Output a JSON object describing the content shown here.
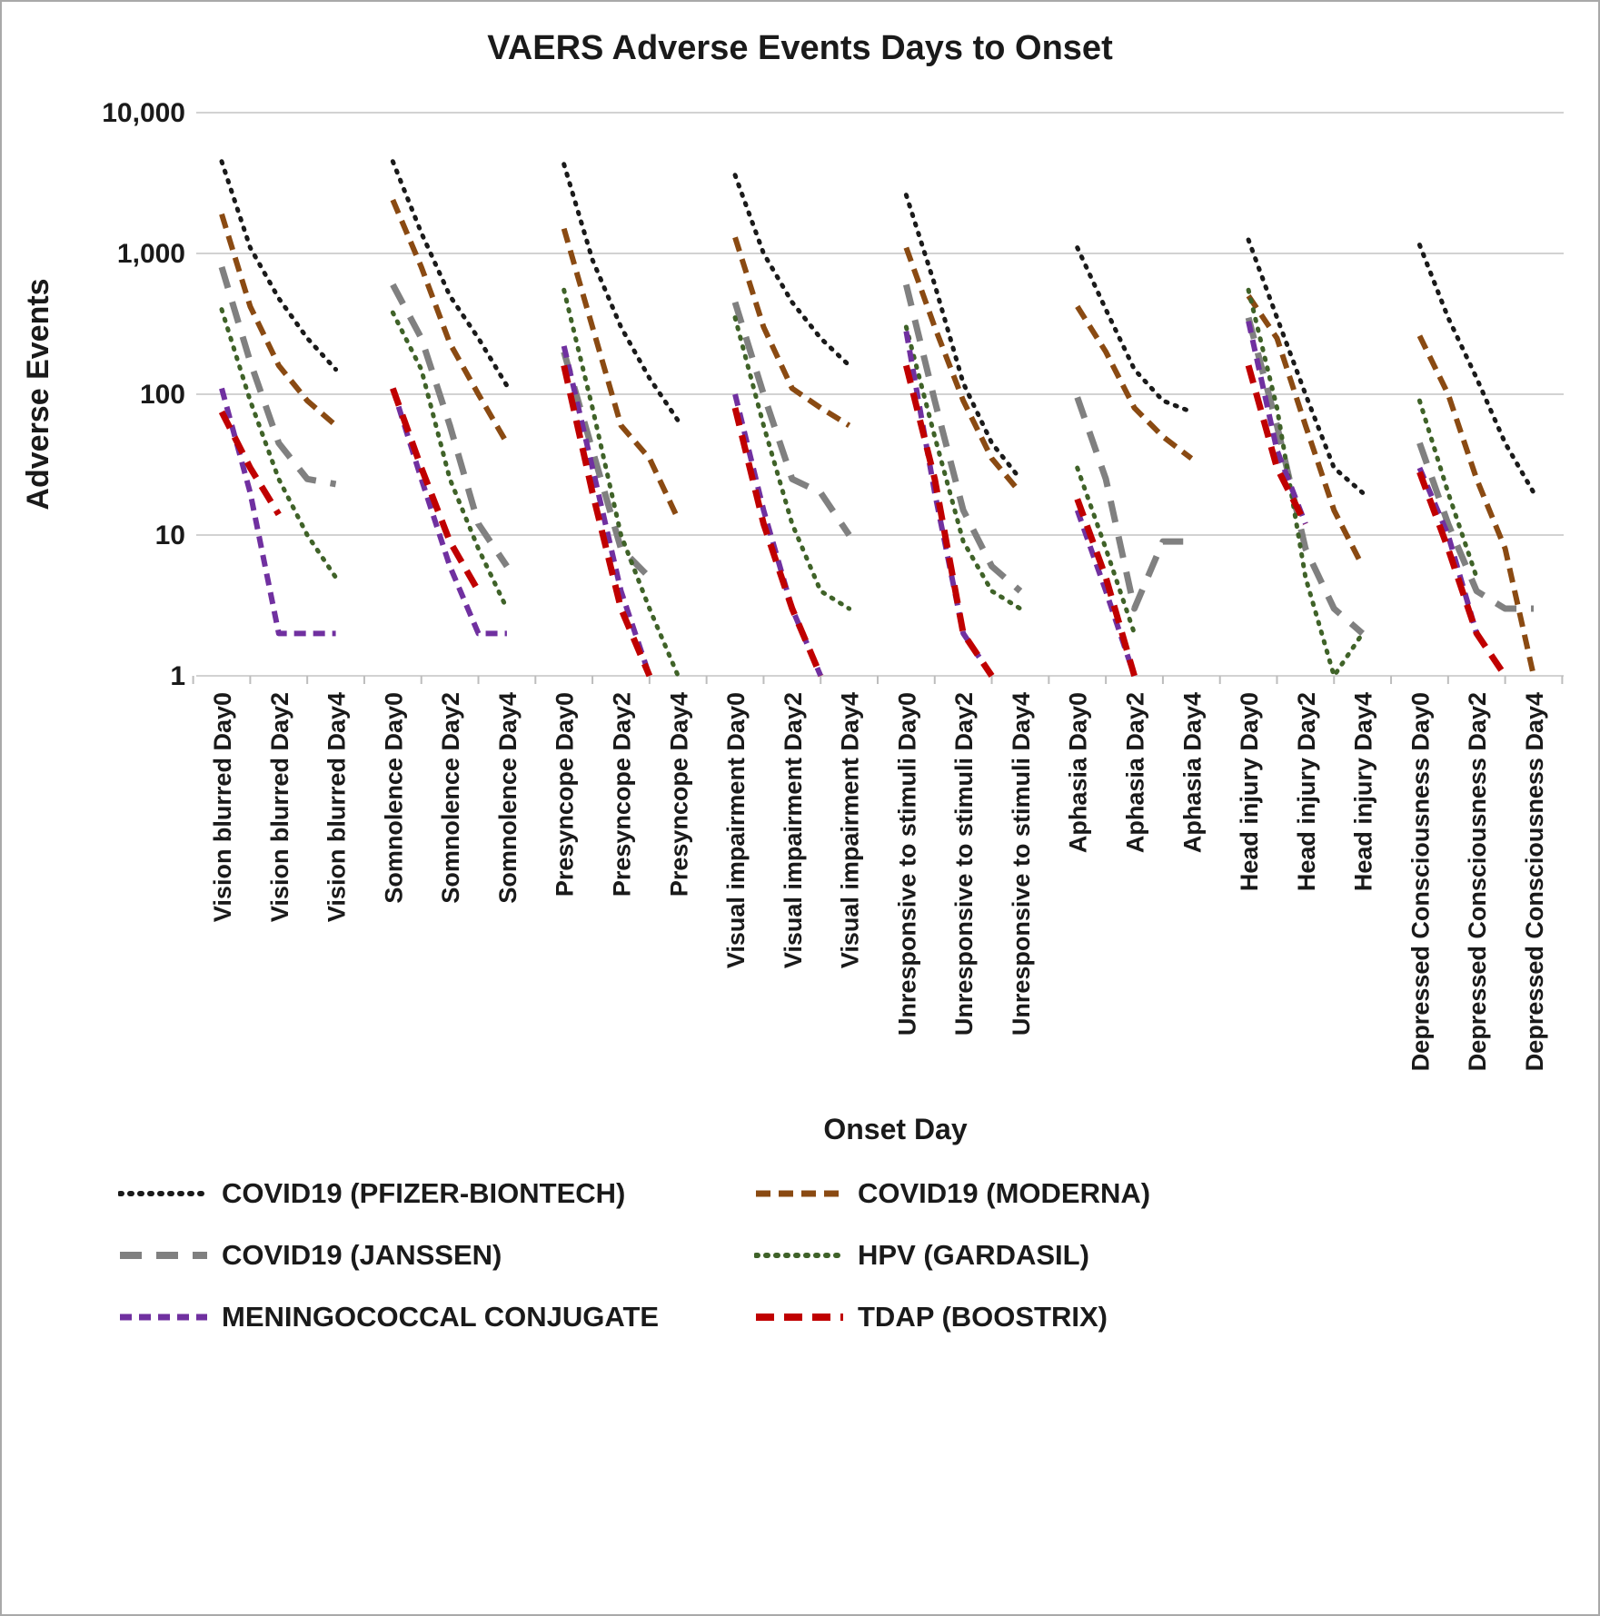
{
  "page": {
    "title": "VAERS Adverse Events Days to Onset"
  },
  "chart_data": {
    "type": "line",
    "title": "VAERS Adverse Events Days to Onset",
    "xlabel": "Onset Day",
    "ylabel": "Adverse Events",
    "y_scale": "log10",
    "ylim": [
      1,
      10000
    ],
    "grid": true,
    "legend_position": "bottom",
    "y_ticks": [
      {
        "value": 1,
        "label": "1"
      },
      {
        "value": 10,
        "label": "10"
      },
      {
        "value": 100,
        "label": "100"
      },
      {
        "value": 1000,
        "label": "1,000"
      },
      {
        "value": 10000,
        "label": "10,000"
      }
    ],
    "day_offsets": [
      0,
      1,
      2,
      3,
      4
    ],
    "labeled_days": [
      0,
      2,
      4
    ],
    "day_label_prefix": "Day",
    "series_meta": [
      {
        "id": "pfizer",
        "label": "COVID19 (PFIZER-BIONTECH)",
        "color": "#1a1a1a",
        "dash": "2 9",
        "width": 5,
        "cap": "round"
      },
      {
        "id": "moderna",
        "label": "COVID19 (MODERNA)",
        "color": "#8a4a12",
        "dash": "16 9",
        "width": 6,
        "cap": "butt"
      },
      {
        "id": "janssen",
        "label": "COVID19 (JANSSEN)",
        "color": "#808080",
        "dash": "24 16",
        "width": 7,
        "cap": "butt"
      },
      {
        "id": "gardasil",
        "label": "HPV (GARDASIL)",
        "color": "#3f6228",
        "dash": "2 9",
        "width": 5,
        "cap": "round"
      },
      {
        "id": "mening",
        "label": "MENINGOCOCCAL CONJUGATE",
        "color": "#7030a0",
        "dash": "13 8",
        "width": 6,
        "cap": "butt"
      },
      {
        "id": "tdap",
        "label": "TDAP (BOOSTRIX)",
        "color": "#c00000",
        "dash": "20 11",
        "width": 7,
        "cap": "butt"
      }
    ],
    "groups": [
      {
        "symptom": "Vision blurred",
        "values": {
          "pfizer": [
            4500,
            1100,
            480,
            250,
            150
          ],
          "moderna": [
            1900,
            420,
            160,
            90,
            60
          ],
          "janssen": [
            800,
            170,
            45,
            25,
            23
          ],
          "gardasil": [
            400,
            90,
            25,
            10,
            5
          ],
          "mening": [
            110,
            20,
            2,
            2,
            2
          ],
          "tdap": [
            75,
            30,
            14,
            null,
            null
          ]
        }
      },
      {
        "symptom": "Somnolence",
        "values": {
          "pfizer": [
            4500,
            1400,
            500,
            250,
            115
          ],
          "moderna": [
            2400,
            800,
            230,
            100,
            45
          ],
          "janssen": [
            600,
            250,
            60,
            12,
            6
          ],
          "gardasil": [
            380,
            150,
            25,
            8,
            3
          ],
          "mening": [
            110,
            25,
            6,
            2,
            2
          ],
          "tdap": [
            110,
            30,
            9,
            4,
            null
          ]
        }
      },
      {
        "symptom": "Presyncope",
        "values": {
          "pfizer": [
            4300,
            900,
            300,
            130,
            65
          ],
          "moderna": [
            1500,
            300,
            60,
            35,
            13
          ],
          "janssen": [
            200,
            40,
            8,
            5,
            null
          ],
          "gardasil": [
            550,
            80,
            10,
            3,
            1
          ],
          "mening": [
            220,
            30,
            4,
            1,
            null
          ],
          "tdap": [
            160,
            20,
            3,
            1,
            null
          ]
        }
      },
      {
        "symptom": "Visual impairment",
        "values": {
          "pfizer": [
            3600,
            1000,
            450,
            250,
            160
          ],
          "moderna": [
            1300,
            300,
            110,
            80,
            60
          ],
          "janssen": [
            450,
            100,
            25,
            20,
            10
          ],
          "gardasil": [
            350,
            60,
            12,
            4,
            3
          ],
          "mening": [
            100,
            15,
            3,
            1,
            null
          ],
          "tdap": [
            80,
            12,
            3,
            1,
            null
          ]
        }
      },
      {
        "symptom": "Unresponsive to stimuli",
        "values": {
          "pfizer": [
            2600,
            600,
            120,
            45,
            25
          ],
          "moderna": [
            1100,
            300,
            90,
            35,
            20
          ],
          "janssen": [
            600,
            90,
            15,
            6,
            4
          ],
          "gardasil": [
            300,
            50,
            9,
            4,
            3
          ],
          "mening": [
            280,
            20,
            2,
            1,
            null
          ],
          "tdap": [
            160,
            25,
            2,
            1,
            null
          ]
        }
      },
      {
        "symptom": "Aphasia",
        "values": {
          "pfizer": [
            1100,
            400,
            150,
            90,
            75
          ],
          "moderna": [
            420,
            200,
            80,
            50,
            35
          ],
          "janssen": [
            95,
            25,
            3,
            9,
            9
          ],
          "gardasil": [
            30,
            8,
            2,
            null,
            null
          ],
          "mening": [
            15,
            4,
            1,
            null,
            null
          ],
          "tdap": [
            18,
            5,
            1,
            null,
            null
          ]
        }
      },
      {
        "symptom": "Head injury",
        "values": {
          "pfizer": [
            1250,
            350,
            100,
            30,
            20
          ],
          "moderna": [
            500,
            250,
            60,
            15,
            6
          ],
          "janssen": [
            350,
            60,
            8,
            3,
            2
          ],
          "gardasil": [
            550,
            80,
            5,
            1,
            2
          ],
          "mening": [
            330,
            40,
            12,
            null,
            null
          ],
          "tdap": [
            160,
            30,
            12,
            null,
            null
          ]
        }
      },
      {
        "symptom": "Depressed Consciousness",
        "values": {
          "pfizer": [
            1150,
            350,
            130,
            45,
            20
          ],
          "moderna": [
            260,
            100,
            25,
            8,
            1
          ],
          "janssen": [
            45,
            12,
            4,
            3,
            3
          ],
          "gardasil": [
            90,
            20,
            5,
            null,
            null
          ],
          "mening": [
            30,
            10,
            2,
            null,
            null
          ],
          "tdap": [
            28,
            8,
            2,
            1,
            null
          ]
        }
      }
    ]
  }
}
